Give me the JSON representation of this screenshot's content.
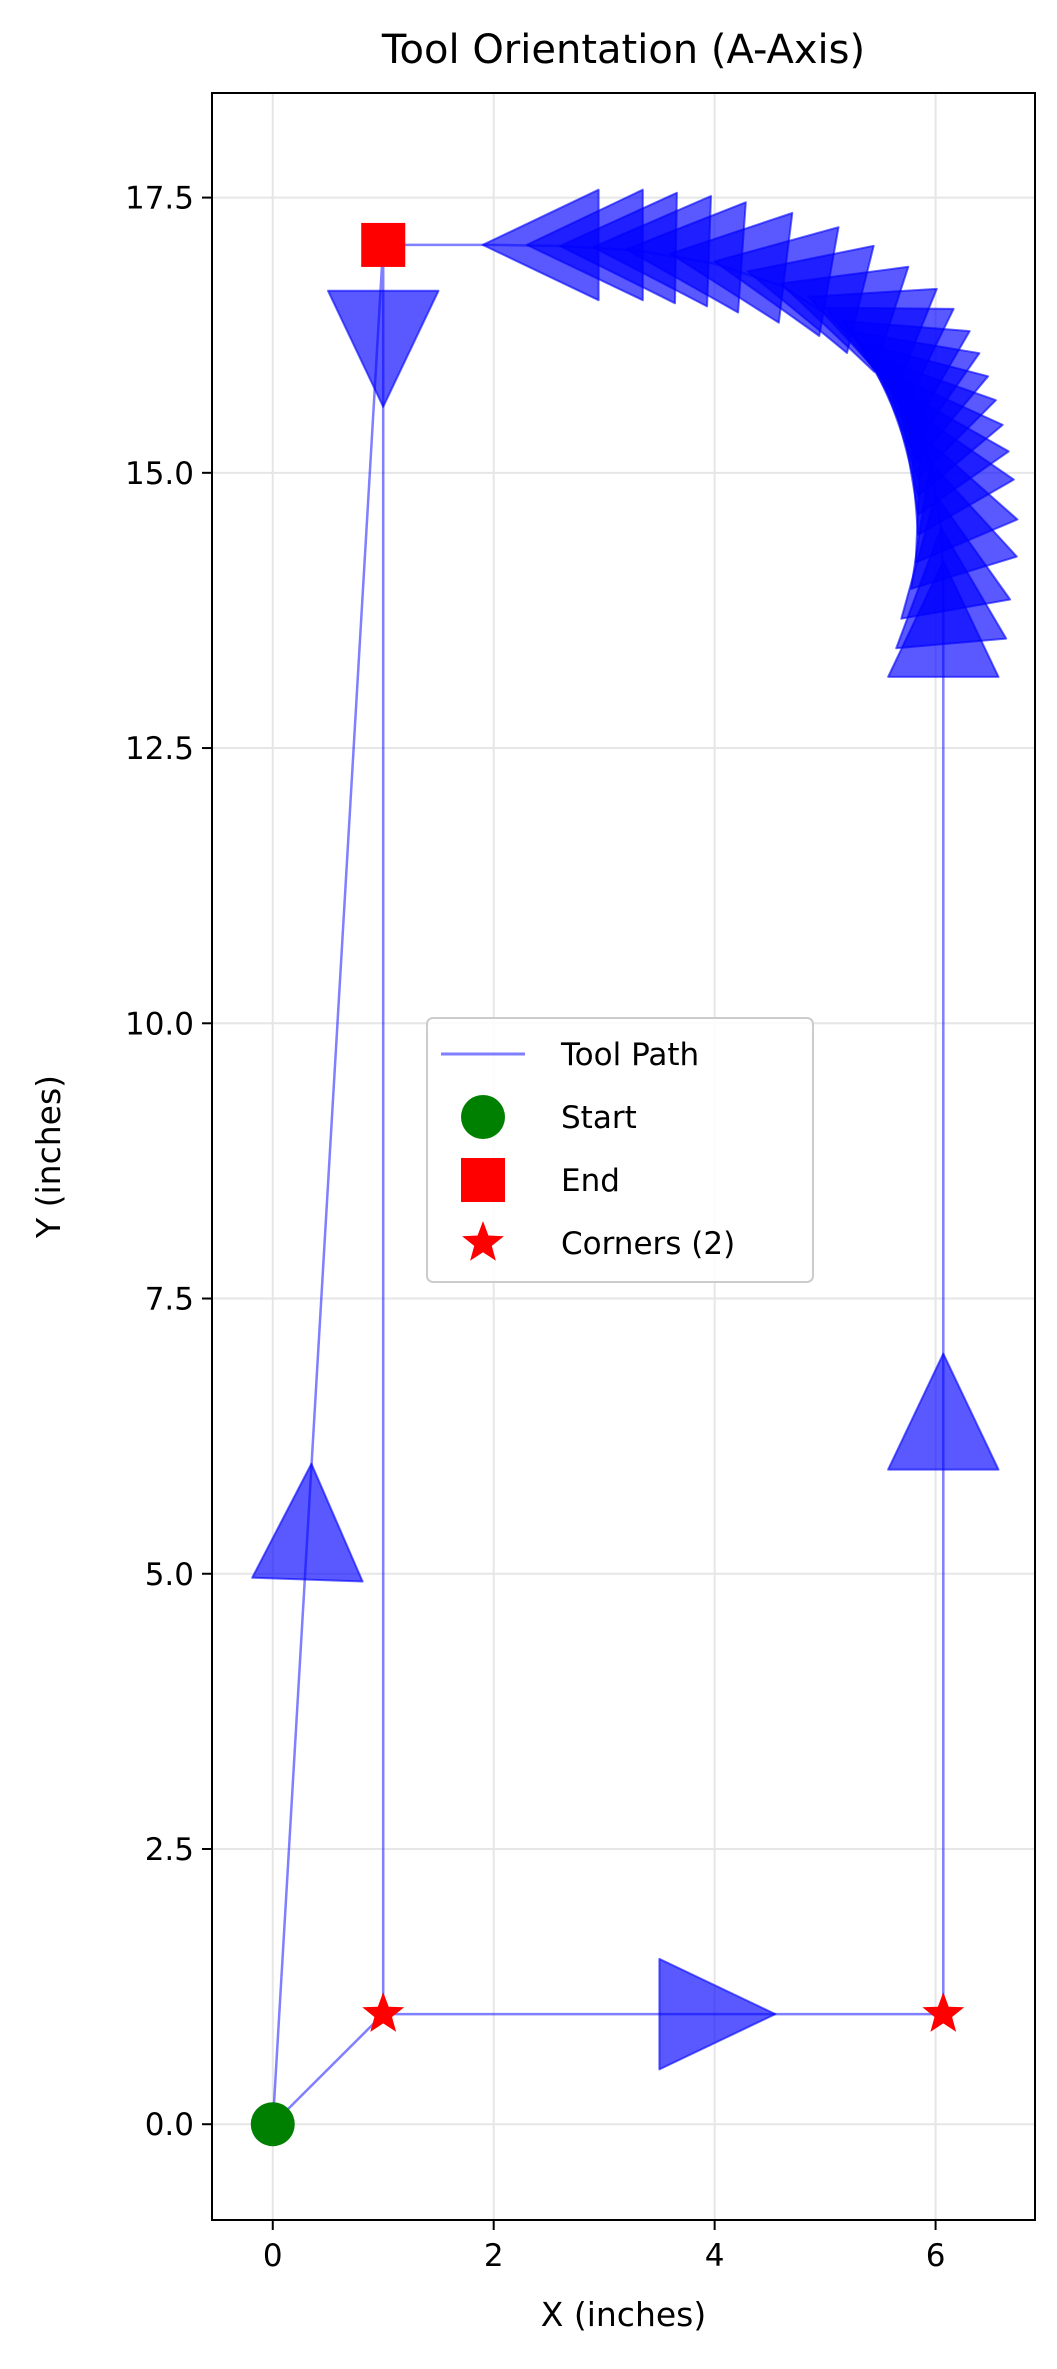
{
  "chart_data": {
    "type": "scatter",
    "title": "Tool Orientation (A-Axis)",
    "xlabel": "X (inches)",
    "ylabel": "Y (inches)",
    "xlim": [
      -0.55,
      6.9
    ],
    "ylim": [
      -0.87,
      18.45
    ],
    "xticks": [
      0,
      2,
      4,
      6
    ],
    "yticks": [
      0.0,
      2.5,
      5.0,
      7.5,
      10.0,
      12.5,
      15.0,
      17.5
    ],
    "grid": true,
    "legend_position": "center",
    "colors": {
      "path": "#0000ff",
      "arrow": "#0000ff",
      "start": "#008000",
      "end": "#ff0000",
      "corner": "#ff0000",
      "grid": "#e6e6e6"
    },
    "series": [
      {
        "name": "Tool Path",
        "kind": "line",
        "points": [
          [
            0,
            0
          ],
          [
            1,
            1
          ],
          [
            6.07,
            1
          ],
          [
            6.07,
            14.0
          ],
          [
            6.05,
            14.5
          ],
          [
            5.95,
            15.1
          ],
          [
            5.75,
            15.6
          ],
          [
            5.55,
            15.9
          ],
          [
            5.3,
            16.2
          ],
          [
            5.0,
            16.45
          ],
          [
            4.6,
            16.7
          ],
          [
            4.0,
            16.9
          ],
          [
            3.3,
            17.02
          ],
          [
            2.6,
            17.06
          ],
          [
            2.0,
            17.07
          ],
          [
            1.0,
            17.07
          ],
          [
            1.0,
            1.0
          ],
          [
            0,
            0
          ],
          [
            1.0,
            17.07
          ]
        ]
      },
      {
        "name": "Start",
        "kind": "marker",
        "marker": "circle",
        "points": [
          [
            0,
            0
          ]
        ]
      },
      {
        "name": "End",
        "kind": "marker",
        "marker": "square",
        "points": [
          [
            1.0,
            17.07
          ]
        ]
      },
      {
        "name": "Corners (2)",
        "kind": "marker",
        "marker": "star",
        "points": [
          [
            1.0,
            1.0
          ],
          [
            6.07,
            1.0
          ]
        ]
      }
    ],
    "orientation_arrows": [
      {
        "x": 0.35,
        "y": 6.0,
        "angle": 88
      },
      {
        "x": 1.0,
        "y": 15.6,
        "angle": 270
      },
      {
        "x": 4.55,
        "y": 1.0,
        "angle": 0
      },
      {
        "x": 6.07,
        "y": 7.0,
        "angle": 90
      },
      {
        "x": 6.07,
        "y": 14.2,
        "angle": 90
      },
      {
        "x": 6.05,
        "y": 14.5,
        "angle": 95
      },
      {
        "x": 6.0,
        "y": 14.8,
        "angle": 100
      },
      {
        "x": 5.95,
        "y": 15.1,
        "angle": 107
      },
      {
        "x": 5.87,
        "y": 15.35,
        "angle": 113
      },
      {
        "x": 5.75,
        "y": 15.6,
        "angle": 120
      },
      {
        "x": 5.65,
        "y": 15.77,
        "angle": 125
      },
      {
        "x": 5.55,
        "y": 15.92,
        "angle": 130
      },
      {
        "x": 5.45,
        "y": 16.05,
        "angle": 135
      },
      {
        "x": 5.35,
        "y": 16.17,
        "angle": 140
      },
      {
        "x": 5.25,
        "y": 16.28,
        "angle": 145
      },
      {
        "x": 5.15,
        "y": 16.38,
        "angle": 150
      },
      {
        "x": 5.0,
        "y": 16.5,
        "angle": 154
      },
      {
        "x": 4.85,
        "y": 16.6,
        "angle": 158
      },
      {
        "x": 4.6,
        "y": 16.72,
        "angle": 162
      },
      {
        "x": 4.3,
        "y": 16.83,
        "angle": 166
      },
      {
        "x": 4.0,
        "y": 16.92,
        "angle": 170
      },
      {
        "x": 3.6,
        "y": 16.99,
        "angle": 173
      },
      {
        "x": 3.2,
        "y": 17.03,
        "angle": 176
      },
      {
        "x": 2.9,
        "y": 17.05,
        "angle": 178
      },
      {
        "x": 2.6,
        "y": 17.06,
        "angle": 179
      },
      {
        "x": 2.3,
        "y": 17.07,
        "angle": 180
      },
      {
        "x": 1.9,
        "y": 17.07,
        "angle": 180
      }
    ]
  }
}
